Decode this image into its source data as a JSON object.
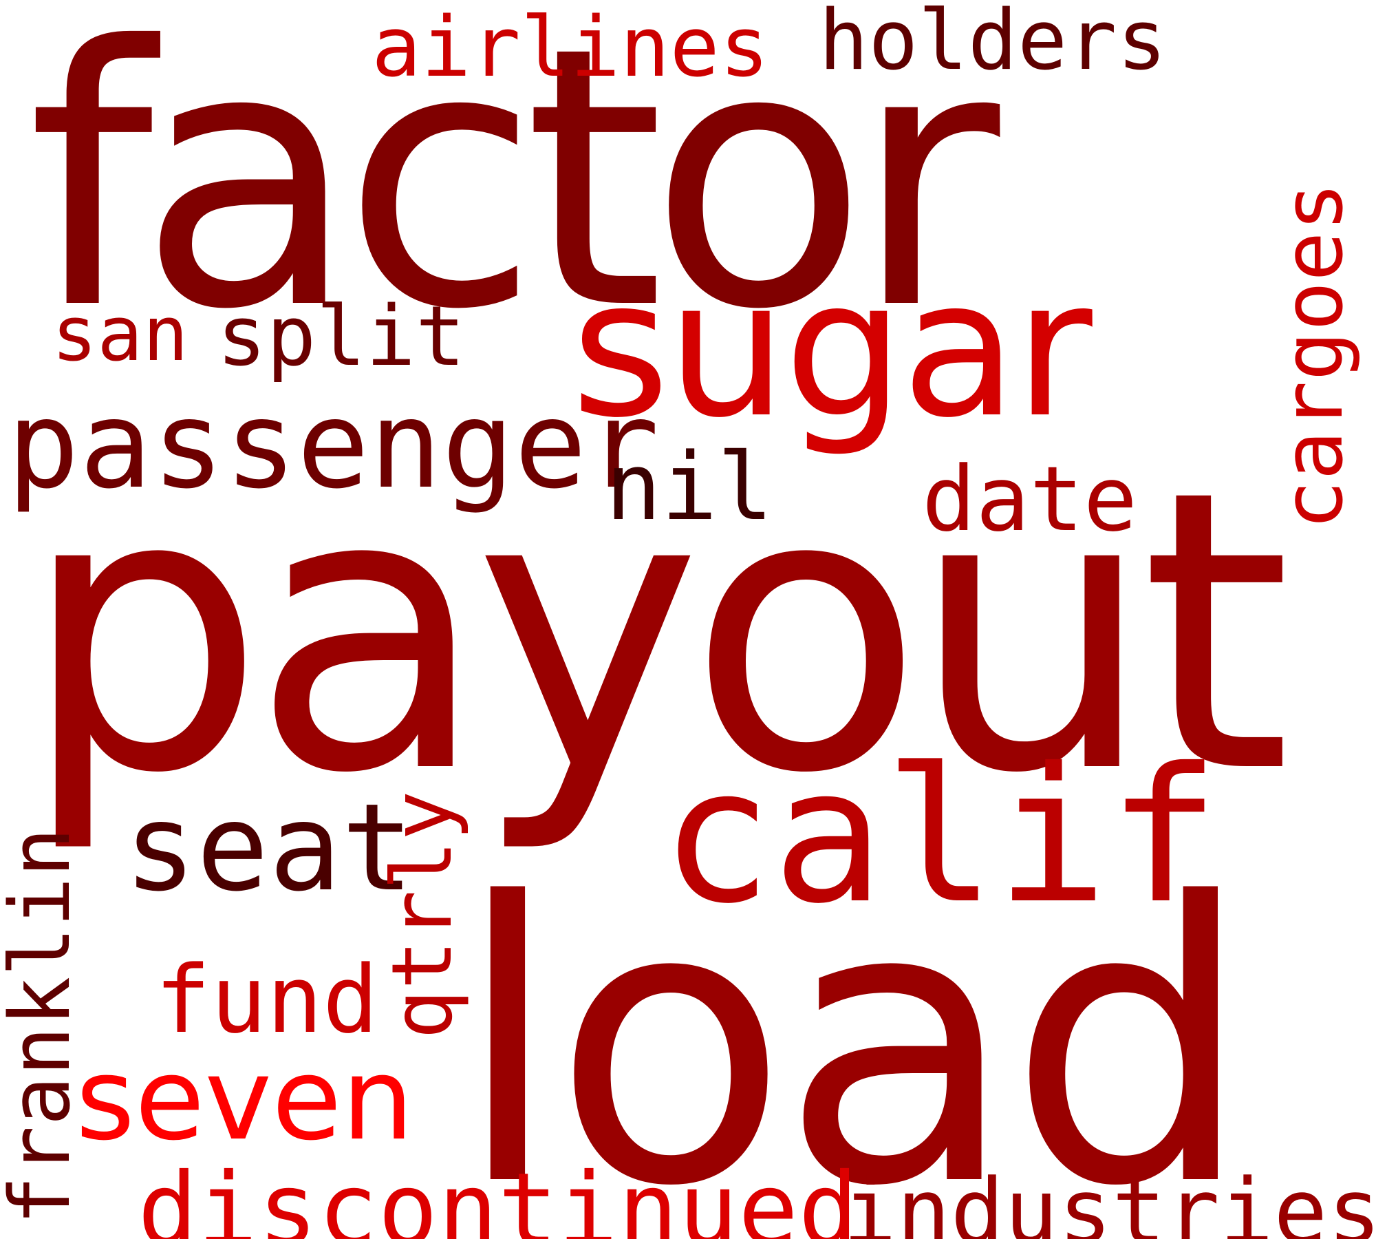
{
  "words": [
    {
      "text": "factor",
      "color": "#800000"
    },
    {
      "text": "payout",
      "color": "#990000"
    },
    {
      "text": "load",
      "color": "#990000"
    },
    {
      "text": "sugar",
      "color": "#d40000"
    },
    {
      "text": "calif",
      "color": "#bb0000"
    },
    {
      "text": "airlines",
      "color": "#cc0000"
    },
    {
      "text": "holders",
      "color": "#5e0000"
    },
    {
      "text": "san",
      "color": "#aa0000"
    },
    {
      "text": "split",
      "color": "#6a0000"
    },
    {
      "text": "passenger",
      "color": "#6e0000"
    },
    {
      "text": "nil",
      "color": "#3a0000"
    },
    {
      "text": "date",
      "color": "#aa0000"
    },
    {
      "text": "cargoes",
      "color": "#cc0000"
    },
    {
      "text": "seat",
      "color": "#4a0000"
    },
    {
      "text": "qtrly",
      "color": "#bb0000"
    },
    {
      "text": "franklin",
      "color": "#5e0000"
    },
    {
      "text": "fund",
      "color": "#cc0000"
    },
    {
      "text": "seven",
      "color": "#ff0000"
    },
    {
      "text": "discontinued",
      "color": "#dd0000"
    },
    {
      "text": "industries",
      "color": "#990000"
    }
  ]
}
